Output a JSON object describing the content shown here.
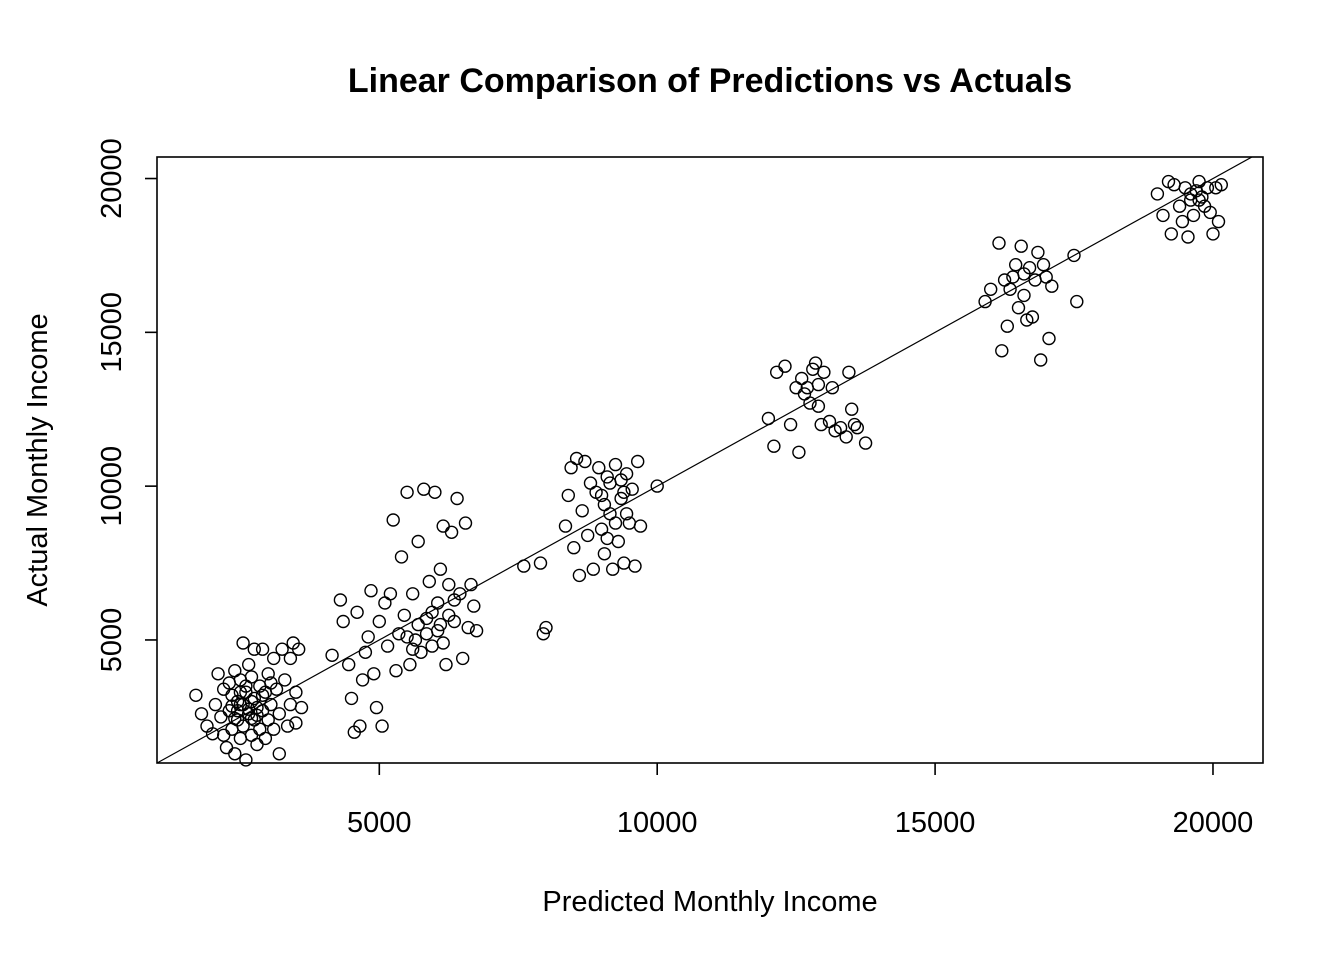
{
  "chart_data": {
    "type": "scatter",
    "title": "Linear Comparison of Predictions vs Actuals",
    "xlabel": "Predicted Monthly Income",
    "ylabel": "Actual Monthly Income",
    "xlim": [
      1000,
      20900
    ],
    "ylim": [
      1000,
      20700
    ],
    "x_ticks": [
      5000,
      10000,
      15000,
      20000
    ],
    "y_ticks": [
      5000,
      10000,
      15000,
      20000
    ],
    "x_tick_labels": [
      "5000",
      "10000",
      "15000",
      "20000"
    ],
    "y_tick_labels": [
      "5000",
      "10000",
      "15000",
      "20000"
    ],
    "grid": false,
    "marker": "open-circle",
    "reference_line": {
      "intercept": 0,
      "slope": 1
    },
    "series": [
      {
        "points": [
          [
            1700,
            3200
          ],
          [
            1800,
            2600
          ],
          [
            1900,
            2200
          ],
          [
            2000,
            1950
          ],
          [
            2050,
            2900
          ],
          [
            2100,
            3900
          ],
          [
            2150,
            2500
          ],
          [
            2200,
            1900
          ],
          [
            2200,
            3400
          ],
          [
            2250,
            1500
          ],
          [
            2300,
            2700
          ],
          [
            2300,
            3600
          ],
          [
            2350,
            2100
          ],
          [
            2400,
            4000
          ],
          [
            2400,
            1300
          ],
          [
            2450,
            3000
          ],
          [
            2450,
            2400
          ],
          [
            2500,
            3700
          ],
          [
            2500,
            1800
          ],
          [
            2500,
            2900
          ],
          [
            2550,
            4900
          ],
          [
            2550,
            2200
          ],
          [
            2600,
            3300
          ],
          [
            2600,
            1100
          ],
          [
            2650,
            2600
          ],
          [
            2650,
            4200
          ],
          [
            2700,
            3000
          ],
          [
            2700,
            1900
          ],
          [
            2700,
            3800
          ],
          [
            2750,
            2400
          ],
          [
            2750,
            4700
          ],
          [
            2800,
            2800
          ],
          [
            2800,
            1600
          ],
          [
            2850,
            3500
          ],
          [
            2850,
            2100
          ],
          [
            2900,
            4700
          ],
          [
            2900,
            2700
          ],
          [
            2950,
            3300
          ],
          [
            2950,
            1800
          ],
          [
            3000,
            3900
          ],
          [
            3000,
            2400
          ],
          [
            3050,
            2900
          ],
          [
            3100,
            4400
          ],
          [
            3100,
            2100
          ],
          [
            3150,
            3400
          ],
          [
            3200,
            1300
          ],
          [
            3200,
            2600
          ],
          [
            3250,
            4700
          ],
          [
            3300,
            3700
          ],
          [
            3350,
            2200
          ],
          [
            3400,
            4400
          ],
          [
            3400,
            2900
          ],
          [
            3450,
            4900
          ],
          [
            3500,
            2300
          ],
          [
            3500,
            3300
          ],
          [
            3550,
            4700
          ],
          [
            3600,
            2800
          ],
          [
            2350,
            3200
          ],
          [
            2600,
            3500
          ],
          [
            2450,
            2700
          ],
          [
            2750,
            3100
          ],
          [
            2550,
            2900
          ],
          [
            2900,
            3200
          ],
          [
            2650,
            2750
          ],
          [
            2400,
            2450
          ],
          [
            2800,
            2550
          ],
          [
            2500,
            3300
          ],
          [
            2700,
            2450
          ],
          [
            3050,
            3600
          ],
          [
            2350,
            2850
          ],
          [
            4150,
            4500
          ],
          [
            4300,
            6300
          ],
          [
            4350,
            5600
          ],
          [
            4450,
            4200
          ],
          [
            4500,
            3100
          ],
          [
            4550,
            2000
          ],
          [
            4600,
            5900
          ],
          [
            4650,
            2200
          ],
          [
            4700,
            3700
          ],
          [
            4750,
            4600
          ],
          [
            4800,
            5100
          ],
          [
            4850,
            6600
          ],
          [
            4900,
            3900
          ],
          [
            4950,
            2800
          ],
          [
            5000,
            5600
          ],
          [
            5050,
            2200
          ],
          [
            5100,
            6200
          ],
          [
            5150,
            4800
          ],
          [
            5200,
            6500
          ],
          [
            5250,
            8900
          ],
          [
            5300,
            4000
          ],
          [
            5350,
            5200
          ],
          [
            5400,
            7700
          ],
          [
            5450,
            5800
          ],
          [
            5500,
            9800
          ],
          [
            5550,
            4200
          ],
          [
            5600,
            6500
          ],
          [
            5650,
            5000
          ],
          [
            5700,
            8200
          ],
          [
            5750,
            4600
          ],
          [
            5800,
            9900
          ],
          [
            5850,
            5700
          ],
          [
            5900,
            6900
          ],
          [
            5950,
            4800
          ],
          [
            6000,
            9800
          ],
          [
            6050,
            5300
          ],
          [
            6100,
            7300
          ],
          [
            6150,
            8700
          ],
          [
            6200,
            4200
          ],
          [
            6250,
            6800
          ],
          [
            6300,
            8500
          ],
          [
            6350,
            5600
          ],
          [
            6400,
            9600
          ],
          [
            6450,
            6500
          ],
          [
            6500,
            4400
          ],
          [
            6550,
            8800
          ],
          [
            6600,
            5400
          ],
          [
            6650,
            6800
          ],
          [
            6700,
            6100
          ],
          [
            6750,
            5300
          ],
          [
            5850,
            5200
          ],
          [
            6050,
            6200
          ],
          [
            5950,
            5900
          ],
          [
            6150,
            4900
          ],
          [
            5700,
            5500
          ],
          [
            6250,
            5800
          ],
          [
            5500,
            5100
          ],
          [
            6350,
            6300
          ],
          [
            5600,
            4700
          ],
          [
            6100,
            5500
          ],
          [
            7600,
            7400
          ],
          [
            7900,
            7500
          ],
          [
            7950,
            5200
          ],
          [
            8000,
            5400
          ],
          [
            8350,
            8700
          ],
          [
            8400,
            9700
          ],
          [
            8450,
            10600
          ],
          [
            8500,
            8000
          ],
          [
            8550,
            10900
          ],
          [
            8600,
            7100
          ],
          [
            8650,
            9200
          ],
          [
            8700,
            10800
          ],
          [
            8750,
            8400
          ],
          [
            8800,
            10100
          ],
          [
            8850,
            7300
          ],
          [
            8900,
            9800
          ],
          [
            8950,
            10600
          ],
          [
            9000,
            8600
          ],
          [
            9050,
            7800
          ],
          [
            9100,
            10300
          ],
          [
            9150,
            9100
          ],
          [
            9200,
            7300
          ],
          [
            9250,
            10700
          ],
          [
            9300,
            8200
          ],
          [
            9350,
            9600
          ],
          [
            9400,
            7500
          ],
          [
            9450,
            10400
          ],
          [
            9500,
            8800
          ],
          [
            9550,
            9900
          ],
          [
            9600,
            7400
          ],
          [
            9650,
            10800
          ],
          [
            9700,
            8700
          ],
          [
            9050,
            9400
          ],
          [
            9250,
            8800
          ],
          [
            9150,
            10100
          ],
          [
            9350,
            10200
          ],
          [
            9000,
            9700
          ],
          [
            9450,
            9100
          ],
          [
            9100,
            8300
          ],
          [
            9400,
            9800
          ],
          [
            10000,
            10000
          ],
          [
            12000,
            12200
          ],
          [
            12100,
            11300
          ],
          [
            12150,
            13700
          ],
          [
            12300,
            13900
          ],
          [
            12400,
            12000
          ],
          [
            12500,
            13200
          ],
          [
            12550,
            11100
          ],
          [
            12600,
            13500
          ],
          [
            12700,
            13200
          ],
          [
            12750,
            12700
          ],
          [
            12800,
            13800
          ],
          [
            12850,
            14000
          ],
          [
            12900,
            13300
          ],
          [
            12950,
            12000
          ],
          [
            13000,
            13700
          ],
          [
            13100,
            12100
          ],
          [
            13150,
            13200
          ],
          [
            13200,
            11800
          ],
          [
            13300,
            11900
          ],
          [
            13400,
            11600
          ],
          [
            13450,
            13700
          ],
          [
            13500,
            12500
          ],
          [
            13550,
            12000
          ],
          [
            13600,
            11900
          ],
          [
            13750,
            11400
          ],
          [
            12650,
            13000
          ],
          [
            12900,
            12600
          ],
          [
            15900,
            16000
          ],
          [
            16000,
            16400
          ],
          [
            16150,
            17900
          ],
          [
            16200,
            14400
          ],
          [
            16250,
            16700
          ],
          [
            16300,
            15200
          ],
          [
            16400,
            16800
          ],
          [
            16450,
            17200
          ],
          [
            16500,
            15800
          ],
          [
            16550,
            17800
          ],
          [
            16600,
            16200
          ],
          [
            16650,
            15400
          ],
          [
            16700,
            17100
          ],
          [
            16750,
            15500
          ],
          [
            16800,
            16700
          ],
          [
            16850,
            17600
          ],
          [
            16900,
            14100
          ],
          [
            16950,
            17200
          ],
          [
            17000,
            16800
          ],
          [
            17050,
            14800
          ],
          [
            17100,
            16500
          ],
          [
            17500,
            17500
          ],
          [
            17550,
            16000
          ],
          [
            16350,
            16400
          ],
          [
            16600,
            16900
          ],
          [
            19000,
            19500
          ],
          [
            19100,
            18800
          ],
          [
            19200,
            19900
          ],
          [
            19250,
            18200
          ],
          [
            19300,
            19800
          ],
          [
            19400,
            19100
          ],
          [
            19450,
            18600
          ],
          [
            19500,
            19700
          ],
          [
            19550,
            18100
          ],
          [
            19600,
            19300
          ],
          [
            19650,
            18800
          ],
          [
            19700,
            19600
          ],
          [
            19750,
            19900
          ],
          [
            19800,
            19400
          ],
          [
            19850,
            19100
          ],
          [
            19900,
            19700
          ],
          [
            19950,
            18900
          ],
          [
            20000,
            18200
          ],
          [
            20050,
            19700
          ],
          [
            20100,
            18600
          ],
          [
            20150,
            19800
          ],
          [
            19750,
            19300
          ],
          [
            19600,
            19500
          ]
        ]
      }
    ]
  }
}
